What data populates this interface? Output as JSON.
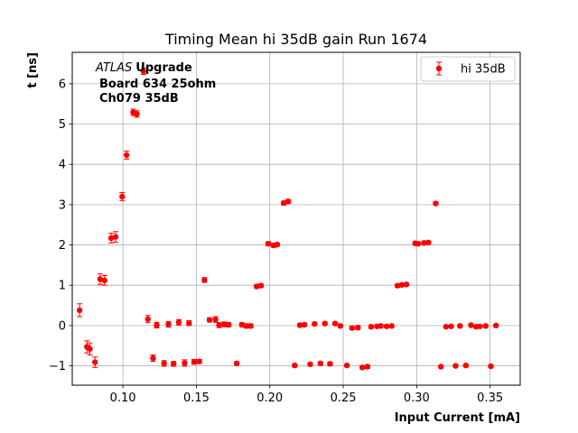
{
  "chart_data": {
    "type": "scatter",
    "title": "Timing Mean hi 35dB gain Run 1674",
    "xlabel": "Input Current [mA]",
    "ylabel": "t [ns]",
    "xlim": [
      0.0655,
      0.3705
    ],
    "ylim": [
      -1.48,
      6.78
    ],
    "xticks": [
      0.1,
      0.15,
      0.2,
      0.25,
      0.3,
      0.35
    ],
    "xtick_labels": [
      "0.10",
      "0.15",
      "0.20",
      "0.25",
      "0.30",
      "0.35"
    ],
    "yticks": [
      -1,
      0,
      1,
      2,
      3,
      4,
      5,
      6
    ],
    "ytick_labels": [
      "−1",
      "0",
      "1",
      "2",
      "3",
      "4",
      "5",
      "6"
    ],
    "grid": true,
    "legend_position": "top-right",
    "annotation": {
      "atlas": "ATLAS",
      "upgrade": "Upgrade",
      "line2": "Board 634 25ohm",
      "line3": "Ch079 35dB"
    },
    "series": [
      {
        "name": "hi 35dB",
        "color": "#ff0000",
        "marker": "circle",
        "points": [
          {
            "x": 0.0705,
            "y": 0.38,
            "err": 0.16
          },
          {
            "x": 0.0755,
            "y": -0.53,
            "err": 0.15
          },
          {
            "x": 0.0775,
            "y": -0.58,
            "err": 0.15
          },
          {
            "x": 0.081,
            "y": -0.91,
            "err": 0.13
          },
          {
            "x": 0.0845,
            "y": 1.15,
            "err": 0.13
          },
          {
            "x": 0.0875,
            "y": 1.12,
            "err": 0.12
          },
          {
            "x": 0.092,
            "y": 2.17,
            "err": 0.12
          },
          {
            "x": 0.095,
            "y": 2.2,
            "err": 0.13
          },
          {
            "x": 0.0995,
            "y": 3.2,
            "err": 0.1
          },
          {
            "x": 0.1025,
            "y": 4.23,
            "err": 0.1
          },
          {
            "x": 0.107,
            "y": 5.29,
            "err": 0.08
          },
          {
            "x": 0.1095,
            "y": 5.25,
            "err": 0.08
          },
          {
            "x": 0.114,
            "y": 6.31,
            "err": 0.08
          },
          {
            "x": 0.117,
            "y": 0.16,
            "err": 0.09
          },
          {
            "x": 0.1205,
            "y": -0.81,
            "err": 0.08
          },
          {
            "x": 0.123,
            "y": 0.01,
            "err": 0.07
          },
          {
            "x": 0.128,
            "y": -0.94,
            "err": 0.07
          },
          {
            "x": 0.131,
            "y": 0.03,
            "err": 0.07
          },
          {
            "x": 0.1345,
            "y": -0.95,
            "err": 0.06
          },
          {
            "x": 0.138,
            "y": 0.08,
            "err": 0.07
          },
          {
            "x": 0.142,
            "y": -0.93,
            "err": 0.08
          },
          {
            "x": 0.145,
            "y": 0.06,
            "err": 0.06
          },
          {
            "x": 0.1485,
            "y": -0.9,
            "err": 0.06
          },
          {
            "x": 0.152,
            "y": -0.89,
            "err": 0.05
          },
          {
            "x": 0.1555,
            "y": 1.13,
            "err": 0.06
          },
          {
            "x": 0.159,
            "y": 0.14,
            "err": 0.05
          },
          {
            "x": 0.163,
            "y": 0.15,
            "err": 0.07
          },
          {
            "x": 0.1655,
            "y": 0.01,
            "err": 0.06
          },
          {
            "x": 0.169,
            "y": 0.03,
            "err": 0.06
          },
          {
            "x": 0.172,
            "y": 0.02,
            "err": 0.05
          },
          {
            "x": 0.1775,
            "y": -0.94,
            "err": 0.04
          },
          {
            "x": 0.181,
            "y": 0.02,
            "err": 0.05
          },
          {
            "x": 0.184,
            "y": -0.01,
            "err": 0.05
          },
          {
            "x": 0.187,
            "y": -0.01,
            "err": 0.05
          },
          {
            "x": 0.191,
            "y": 0.97,
            "err": 0.04
          },
          {
            "x": 0.194,
            "y": 0.99,
            "err": 0.04
          },
          {
            "x": 0.199,
            "y": 2.03,
            "err": 0.05
          },
          {
            "x": 0.2025,
            "y": 1.99,
            "err": 0.05
          },
          {
            "x": 0.205,
            "y": 2.01,
            "err": 0.04
          },
          {
            "x": 0.2095,
            "y": 3.04,
            "err": 0.05
          },
          {
            "x": 0.2125,
            "y": 3.08,
            "err": 0.05
          },
          {
            "x": 0.217,
            "y": -0.99,
            "err": 0.04
          },
          {
            "x": 0.2205,
            "y": 0.01,
            "err": 0.04
          },
          {
            "x": 0.2235,
            "y": 0.02,
            "err": 0.04
          },
          {
            "x": 0.2275,
            "y": -0.96,
            "err": 0.04
          },
          {
            "x": 0.2305,
            "y": 0.04,
            "err": 0.03
          },
          {
            "x": 0.2345,
            "y": -0.94,
            "err": 0.04
          },
          {
            "x": 0.2375,
            "y": 0.05,
            "err": 0.03
          },
          {
            "x": 0.241,
            "y": -0.95,
            "err": 0.04
          },
          {
            "x": 0.2445,
            "y": 0.05,
            "err": 0.03
          },
          {
            "x": 0.248,
            "y": -0.01,
            "err": 0.03
          },
          {
            "x": 0.2525,
            "y": -0.99,
            "err": 0.03
          },
          {
            "x": 0.256,
            "y": -0.06,
            "err": 0.04
          },
          {
            "x": 0.26,
            "y": -0.05,
            "err": 0.05
          },
          {
            "x": 0.263,
            "y": -1.04,
            "err": 0.04
          },
          {
            "x": 0.2665,
            "y": -1.02,
            "err": 0.04
          },
          {
            "x": 0.269,
            "y": -0.03,
            "err": 0.04
          },
          {
            "x": 0.273,
            "y": -0.02,
            "err": 0.04
          },
          {
            "x": 0.2755,
            "y": -0.01,
            "err": 0.04
          },
          {
            "x": 0.2795,
            "y": -0.02,
            "err": 0.03
          },
          {
            "x": 0.283,
            "y": -0.01,
            "err": 0.03
          },
          {
            "x": 0.287,
            "y": 0.99,
            "err": 0.04
          },
          {
            "x": 0.29,
            "y": 1.01,
            "err": 0.03
          },
          {
            "x": 0.293,
            "y": 1.02,
            "err": 0.03
          },
          {
            "x": 0.299,
            "y": 2.04,
            "err": 0.04
          },
          {
            "x": 0.301,
            "y": 2.03,
            "err": 0.04
          },
          {
            "x": 0.305,
            "y": 2.05,
            "err": 0.04
          },
          {
            "x": 0.308,
            "y": 2.06,
            "err": 0.04
          },
          {
            "x": 0.313,
            "y": 3.03,
            "err": 0.04
          },
          {
            "x": 0.3165,
            "y": -1.02,
            "err": 0.03
          },
          {
            "x": 0.32,
            "y": -0.03,
            "err": 0.03
          },
          {
            "x": 0.3235,
            "y": -0.02,
            "err": 0.03
          },
          {
            "x": 0.3265,
            "y": -1.0,
            "err": 0.03
          },
          {
            "x": 0.3295,
            "y": -0.01,
            "err": 0.03
          },
          {
            "x": 0.3335,
            "y": -0.99,
            "err": 0.03
          },
          {
            "x": 0.337,
            "y": 0.01,
            "err": 0.03
          },
          {
            "x": 0.3405,
            "y": -0.03,
            "err": 0.03
          },
          {
            "x": 0.343,
            "y": -0.02,
            "err": 0.03
          },
          {
            "x": 0.347,
            "y": -0.01,
            "err": 0.03
          },
          {
            "x": 0.3505,
            "y": -1.01,
            "err": 0.03
          },
          {
            "x": 0.354,
            "y": 0.0,
            "err": 0.03
          }
        ]
      }
    ]
  }
}
